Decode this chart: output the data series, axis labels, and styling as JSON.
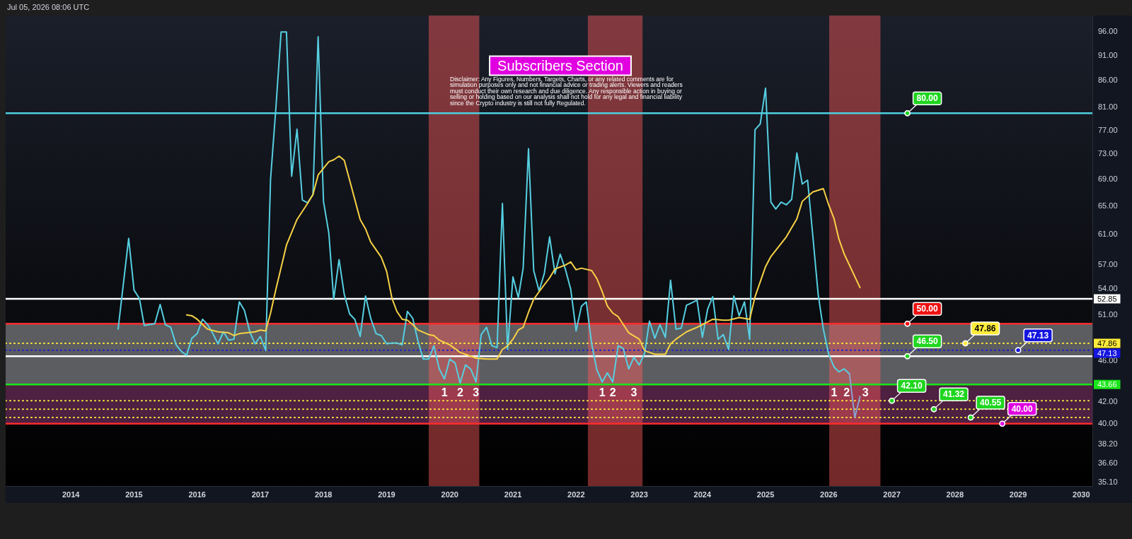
{
  "chart_data": {
    "type": "line",
    "subtitle": "Subscribers Section",
    "annotations": [
      "Jul 05, 2026 08:06 UTC",
      "Disclaimer: Any Figures, Numbers, Targets, Charts, or any related comments are for simulation purposes only and not financial advice or trading alerts. Viewers and readers must conduct their own research and due diligence. Any responsible action in buying or selling or holding based on our analysis shall not hold for any legal and financial liability since the Crypto industry is still not fully Regulated.",
      {
        "text": "1",
        "x": "2019-12",
        "y": 43.66
      },
      {
        "text": "2",
        "x": "2020-03",
        "y": 43.66
      },
      {
        "text": "3",
        "x": "2020-06",
        "y": 43.66
      },
      {
        "text": "1",
        "x": "2022-06",
        "y": 43.66
      },
      {
        "text": "2",
        "x": "2022-08",
        "y": 43.66
      },
      {
        "text": "3",
        "x": "2022-12",
        "y": 43.66
      },
      {
        "text": "1",
        "x": "2026-02",
        "y": 43.66
      },
      {
        "text": "2",
        "x": "2026-04-15",
        "y": 43.66
      },
      {
        "text": "3",
        "x": "2026-08",
        "y": 43.66
      }
    ],
    "log": "y",
    "marker": "none",
    "xlim": [
      "2012-12-20",
      "2030-03-06"
    ],
    "xticks": [
      "2014",
      "2015",
      "2016",
      "2017",
      "2018",
      "2019",
      "2020",
      "2021",
      "2022",
      "2023",
      "2024",
      "2025",
      "2026",
      "2027",
      "2028",
      "2029",
      "2030"
    ],
    "ylim": [
      34.8,
      99.5
    ],
    "yticks": [
      {
        "value": 96,
        "label": "96.00"
      },
      {
        "value": 91,
        "label": "91.00"
      },
      {
        "value": 86,
        "label": "86.00"
      },
      {
        "value": 81,
        "label": "81.00"
      },
      {
        "value": 77,
        "label": "77.00"
      },
      {
        "value": 73,
        "label": "73.00"
      },
      {
        "value": 69,
        "label": "69.00"
      },
      {
        "value": 65,
        "label": "65.00"
      },
      {
        "value": 61,
        "label": "61.00"
      },
      {
        "value": 57,
        "label": "57.00"
      },
      {
        "value": 54,
        "label": "54.00"
      },
      {
        "value": 51,
        "label": "51.00"
      },
      {
        "value": 46,
        "label": "46.00"
      },
      {
        "value": 42,
        "label": "42.00"
      },
      {
        "value": 40,
        "label": "40.00"
      },
      {
        "value": 38.2,
        "label": "38.20"
      },
      {
        "value": 36.6,
        "label": "36.60"
      },
      {
        "value": 35.1,
        "label": "35.10"
      }
    ],
    "bands": [
      {
        "axis": "y",
        "from": 43.66,
        "to": 50,
        "color": "#5c5d61"
      },
      {
        "axis": "y",
        "from": 40,
        "to": 43.66,
        "color": "#4e2042"
      },
      {
        "axis": "x",
        "from": "2019-09",
        "to": "2020-06-20",
        "color": "#ff5a5a"
      },
      {
        "axis": "x",
        "from": "2022-03-10",
        "to": "2023-01-20",
        "color": "#ff5a5a"
      },
      {
        "axis": "x",
        "from": "2026-01-04",
        "to": "2026-10-27",
        "color": "#ff5a5a"
      }
    ],
    "ref_lines": [
      {
        "axis": "y",
        "value": 80,
        "color": "#4dd0e1"
      },
      {
        "axis": "y",
        "value": 52.85,
        "label": "52.85",
        "color": "#ffffff"
      },
      {
        "axis": "y",
        "value": 50,
        "color": "#ff2b2b"
      },
      {
        "axis": "y",
        "value": 47.86,
        "label": "47.86",
        "color": "#ffeb3b",
        "line_style": "dotted"
      },
      {
        "axis": "y",
        "value": 47.13,
        "label": "47.13",
        "color": "#1515e0",
        "line_style": "dotted"
      },
      {
        "axis": "y",
        "value": 46.5,
        "color": "#ffffff"
      },
      {
        "axis": "y",
        "value": 43.66,
        "label": "43.66",
        "color": "#19e619"
      },
      {
        "axis": "y",
        "value": 42.1,
        "color": "#ffeb3b",
        "line_style": "dotted"
      },
      {
        "axis": "y",
        "value": 41.32,
        "color": "#ffeb3b",
        "line_style": "dotted"
      },
      {
        "axis": "y",
        "value": 40.55,
        "color": "#ffeb3b",
        "line_style": "dotted"
      },
      {
        "axis": "y",
        "value": 40,
        "color": "#ff2b2b"
      }
    ],
    "series": [
      {
        "color": "#56cfe1",
        "x": [
          "2014-10",
          "2014-12",
          "2015-01",
          "2015-02",
          "2015-03",
          "2015-05",
          "2015-06",
          "2015-07",
          "2015-08",
          "2015-09",
          "2015-10",
          "2015-11",
          "2015-12",
          "2016-01",
          "2016-02",
          "2016-03",
          "2016-04",
          "2016-05",
          "2016-06",
          "2016-07",
          "2016-08",
          "2016-09",
          "2016-10",
          "2016-11",
          "2016-12",
          "2017-01",
          "2017-02",
          "2017-03",
          "2017-04",
          "2017-05",
          "2017-06",
          "2017-07",
          "2017-08",
          "2017-09",
          "2017-10",
          "2017-11",
          "2017-12",
          "2018-01",
          "2018-02",
          "2018-03",
          "2018-04",
          "2018-05",
          "2018-06",
          "2018-07",
          "2018-08",
          "2018-09",
          "2018-10",
          "2018-11",
          "2018-12",
          "2019-01",
          "2019-02",
          "2019-03",
          "2019-04",
          "2019-05",
          "2019-06",
          "2019-07",
          "2019-08",
          "2019-09",
          "2019-10",
          "2019-11",
          "2019-12",
          "2020-01",
          "2020-02",
          "2020-03",
          "2020-04",
          "2020-05",
          "2020-06",
          "2020-07",
          "2020-08",
          "2020-09",
          "2020-10",
          "2020-11",
          "2020-12",
          "2021-01",
          "2021-02",
          "2021-03",
          "2021-04",
          "2021-05",
          "2021-06",
          "2021-07",
          "2021-08",
          "2021-09",
          "2021-10",
          "2021-11",
          "2021-12",
          "2022-01",
          "2022-02",
          "2022-03",
          "2022-04",
          "2022-05",
          "2022-06",
          "2022-07",
          "2022-08",
          "2022-09",
          "2022-10",
          "2022-11",
          "2022-12",
          "2023-01",
          "2023-02",
          "2023-03",
          "2023-04",
          "2023-05",
          "2023-06",
          "2023-07",
          "2023-08",
          "2023-09",
          "2023-10",
          "2023-11",
          "2023-12",
          "2024-01",
          "2024-02",
          "2024-03",
          "2024-04",
          "2024-05",
          "2024-06",
          "2024-07",
          "2024-08",
          "2024-09",
          "2024-10",
          "2024-11",
          "2024-12",
          "2025-01",
          "2025-02",
          "2025-03",
          "2025-04",
          "2025-05",
          "2025-06",
          "2025-07",
          "2025-08",
          "2025-09",
          "2025-10",
          "2025-11",
          "2025-12",
          "2026-01",
          "2026-02",
          "2026-03",
          "2026-04",
          "2026-05"
        ],
        "values": [
          49.4,
          60.5,
          53.9,
          52.9,
          49.8,
          50.0,
          52.2,
          49.9,
          49.6,
          47.7,
          47.0,
          46.6,
          48.4,
          48.9,
          50.5,
          49.9,
          48.9,
          47.8,
          49.1,
          48.2,
          48.3,
          52.5,
          51.5,
          49.1,
          47.8,
          48.6,
          47.1,
          69.0,
          81.0,
          95.9,
          95.9,
          69.5,
          77.2,
          65.9,
          65.5,
          66.7,
          94.9,
          65.7,
          61.2,
          52.8,
          57.7,
          53.4,
          51.1,
          50.5,
          48.6,
          53.2,
          50.6,
          48.9,
          48.7,
          47.8,
          47.9,
          47.9,
          47.7,
          51.4,
          50.6,
          48.1,
          46.2,
          46.2,
          47.6,
          45.2,
          44.2,
          46.2,
          45.8,
          43.8,
          45.6,
          45.2,
          43.9,
          48.8,
          49.6,
          47.6,
          47.4,
          65.4,
          47.2,
          55.5,
          53.0,
          56.6,
          73.9,
          56.3,
          53.8,
          55.9,
          60.7,
          55.9,
          58.4,
          56.4,
          54.0,
          49.2,
          52.0,
          52.5,
          47.8,
          45.1,
          43.9,
          44.8,
          43.9,
          47.6,
          47.3,
          45.2,
          46.4,
          45.6,
          46.8,
          50.3,
          48.4,
          49.9,
          48.5,
          55.1,
          49.4,
          49.5,
          52.1,
          52.4,
          52.7,
          48.5,
          51.7,
          53.1,
          48.3,
          48.8,
          47.2,
          53.2,
          50.9,
          52.5,
          48.3,
          77.1,
          78.1,
          84.6,
          65.6,
          64.6,
          65.6,
          65.2,
          66.0,
          73.2,
          68.3,
          68.9,
          60.9,
          53.4,
          49.4,
          46.7,
          45.4,
          44.9,
          45.2,
          44.7
        ]
      },
      {
        "color": "#8aa2d0",
        "x": [
          "2026-05",
          "2026-06",
          "2026-07"
        ],
        "values": [
          44.7,
          40.55,
          42.5
        ]
      },
      {
        "color": "#f7d146",
        "x": [
          "2015-11",
          "2015-12",
          "2016-01",
          "2016-02",
          "2016-03",
          "2016-05",
          "2016-07",
          "2016-08",
          "2016-09",
          "2016-12",
          "2017-01",
          "2017-02",
          "2017-03",
          "2017-04",
          "2017-06",
          "2017-08",
          "2017-10",
          "2017-11",
          "2017-12",
          "2018-02",
          "2018-03",
          "2018-04",
          "2018-05",
          "2018-06",
          "2018-08",
          "2018-09",
          "2018-10",
          "2018-12",
          "2019-01",
          "2019-02",
          "2019-03",
          "2019-04",
          "2019-05",
          "2019-06",
          "2019-07",
          "2019-09",
          "2019-10",
          "2019-11",
          "2020-01",
          "2020-03",
          "2020-05",
          "2020-06",
          "2020-08",
          "2020-10",
          "2020-11",
          "2020-12",
          "2021-01",
          "2021-02",
          "2021-03",
          "2021-04",
          "2021-05",
          "2021-06",
          "2021-08",
          "2021-09",
          "2021-11",
          "2021-12",
          "2022-01",
          "2022-02",
          "2022-04",
          "2022-05",
          "2022-06",
          "2022-07",
          "2022-08",
          "2022-09",
          "2022-10",
          "2022-11",
          "2023-01",
          "2023-02",
          "2023-03",
          "2023-04",
          "2023-06",
          "2023-07",
          "2023-08",
          "2023-10",
          "2023-12",
          "2024-02",
          "2024-03",
          "2024-05",
          "2024-06",
          "2024-08",
          "2024-09",
          "2024-10",
          "2024-11",
          "2025-01",
          "2025-02",
          "2025-05",
          "2025-07",
          "2025-08",
          "2025-10",
          "2025-12",
          "2026-01",
          "2026-02",
          "2026-03",
          "2026-04",
          "2026-07"
        ],
        "values": [
          51.0,
          50.9,
          50.5,
          49.9,
          49.4,
          49.1,
          49.0,
          48.7,
          48.9,
          49.1,
          49.3,
          49.2,
          51.2,
          54.0,
          59.6,
          63.1,
          65.4,
          66.7,
          69.7,
          71.8,
          72.1,
          72.7,
          72.0,
          68.9,
          63.1,
          61.8,
          60.0,
          58.0,
          56.2,
          52.9,
          51.4,
          50.5,
          50.4,
          49.9,
          49.3,
          48.8,
          48.7,
          48.2,
          47.7,
          46.9,
          46.5,
          46.3,
          46.2,
          46.2,
          47.2,
          47.6,
          48.3,
          49.3,
          49.6,
          51.3,
          52.8,
          53.7,
          55.4,
          56.5,
          57.0,
          57.4,
          56.4,
          56.6,
          56.3,
          55.3,
          53.7,
          52.0,
          51.2,
          50.8,
          49.9,
          49.0,
          48.3,
          47.1,
          46.9,
          46.7,
          46.7,
          47.8,
          48.3,
          49.1,
          49.6,
          50.2,
          50.5,
          50.4,
          50.4,
          50.7,
          50.6,
          50.5,
          53.1,
          56.8,
          58.1,
          60.7,
          63.2,
          65.7,
          67.1,
          67.6,
          65.2,
          63.2,
          60.4,
          58.4,
          54.2
        ]
      },
      {
        "type": "scatter",
        "marker": "circle",
        "color": "#1fd61f",
        "x": [
          "2027-04",
          "2027-04",
          "2027-01",
          "2027-09",
          "2028-04"
        ],
        "values": [
          80,
          46.5,
          42.1,
          41.32,
          40.55
        ],
        "value_labels": [
          "80.00",
          "46.50",
          "42.10",
          "41.32",
          "40.55"
        ]
      },
      {
        "type": "scatter",
        "marker": "circle",
        "color": "#ee1111",
        "x": [
          "2027-04"
        ],
        "values": [
          50
        ],
        "value_labels": [
          "50.00"
        ]
      },
      {
        "type": "scatter",
        "marker": "circle",
        "color": "#ffeb3b",
        "x": [
          "2028-03"
        ],
        "values": [
          47.86
        ],
        "value_labels": [
          "47.86"
        ]
      },
      {
        "type": "scatter",
        "marker": "circle",
        "color": "#1515e0",
        "x": [
          "2029-01"
        ],
        "values": [
          47.13
        ],
        "value_labels": [
          "47.13"
        ]
      },
      {
        "type": "scatter",
        "marker": "circle",
        "color": "#e000e0",
        "x": [
          "2028-10"
        ],
        "values": [
          40
        ],
        "value_labels": [
          "40.00"
        ]
      }
    ]
  }
}
